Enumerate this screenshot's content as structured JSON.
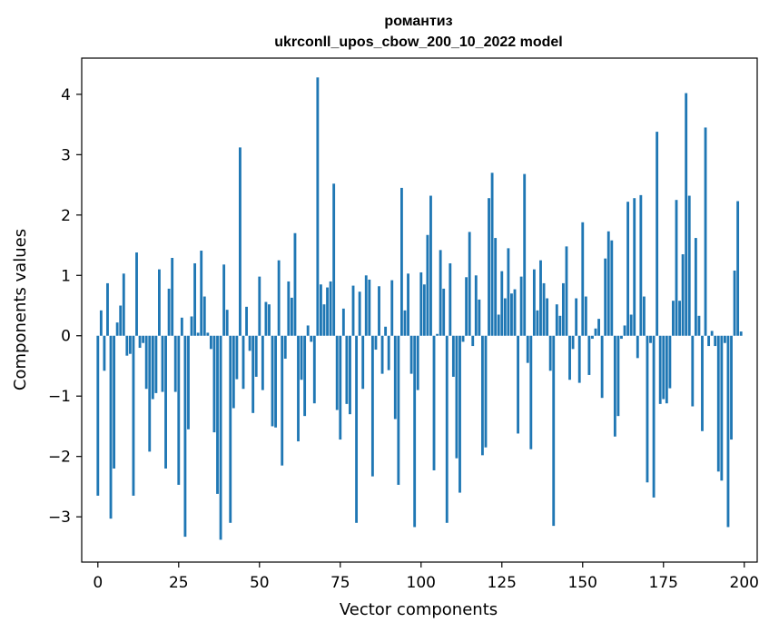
{
  "chart_data": {
    "type": "bar",
    "title": "романтиз",
    "subtitle": "ukrconll_upos_cbow_200_10_2022 model",
    "xlabel": "Vector components",
    "ylabel": "Components values",
    "xlim": [
      -5,
      204
    ],
    "ylim": [
      -3.75,
      4.6
    ],
    "xticks": [
      0,
      25,
      50,
      75,
      100,
      125,
      150,
      175,
      200
    ],
    "yticks": [
      -3,
      -2,
      -1,
      0,
      1,
      2,
      3,
      4
    ],
    "xtick_labels": [
      "0",
      "25",
      "50",
      "75",
      "100",
      "125",
      "150",
      "175",
      "200"
    ],
    "ytick_labels": [
      "−3",
      "−2",
      "−1",
      "0",
      "1",
      "2",
      "3",
      "4"
    ],
    "bar_color": "#1f77b4",
    "x": [
      0,
      1,
      2,
      3,
      4,
      5,
      6,
      7,
      8,
      9,
      10,
      11,
      12,
      13,
      14,
      15,
      16,
      17,
      18,
      19,
      20,
      21,
      22,
      23,
      24,
      25,
      26,
      27,
      28,
      29,
      30,
      31,
      32,
      33,
      34,
      35,
      36,
      37,
      38,
      39,
      40,
      41,
      42,
      43,
      44,
      45,
      46,
      47,
      48,
      49,
      50,
      51,
      52,
      53,
      54,
      55,
      56,
      57,
      58,
      59,
      60,
      61,
      62,
      63,
      64,
      65,
      66,
      67,
      68,
      69,
      70,
      71,
      72,
      73,
      74,
      75,
      76,
      77,
      78,
      79,
      80,
      81,
      82,
      83,
      84,
      85,
      86,
      87,
      88,
      89,
      90,
      91,
      92,
      93,
      94,
      95,
      96,
      97,
      98,
      99,
      100,
      101,
      102,
      103,
      104,
      105,
      106,
      107,
      108,
      109,
      110,
      111,
      112,
      113,
      114,
      115,
      116,
      117,
      118,
      119,
      120,
      121,
      122,
      123,
      124,
      125,
      126,
      127,
      128,
      129,
      130,
      131,
      132,
      133,
      134,
      135,
      136,
      137,
      138,
      139,
      140,
      141,
      142,
      143,
      144,
      145,
      146,
      147,
      148,
      149,
      150,
      151,
      152,
      153,
      154,
      155,
      156,
      157,
      158,
      159,
      160,
      161,
      162,
      163,
      164,
      165,
      166,
      167,
      168,
      169,
      170,
      171,
      172,
      173,
      174,
      175,
      176,
      177,
      178,
      179,
      180,
      181,
      182,
      183,
      184,
      185,
      186,
      187,
      188,
      189,
      190,
      191,
      192,
      193,
      194,
      195,
      196,
      197,
      198,
      199
    ],
    "values": [
      -2.65,
      0.42,
      -0.58,
      0.87,
      -3.03,
      -2.2,
      0.22,
      0.5,
      1.03,
      -0.33,
      -0.3,
      -2.65,
      1.38,
      -0.2,
      -0.12,
      -0.88,
      -1.92,
      -1.05,
      -0.95,
      1.1,
      -0.93,
      -2.2,
      0.78,
      1.29,
      -0.93,
      -2.47,
      0.3,
      -3.33,
      -1.55,
      0.32,
      1.2,
      0.05,
      1.41,
      0.65,
      0.05,
      -0.22,
      -1.6,
      -2.62,
      -3.38,
      1.18,
      0.43,
      -3.1,
      -1.2,
      -0.72,
      3.12,
      -0.88,
      0.48,
      -0.25,
      -1.28,
      -0.68,
      0.98,
      -0.9,
      0.56,
      0.52,
      -1.5,
      -1.52,
      1.25,
      -2.15,
      -0.38,
      0.9,
      0.63,
      1.7,
      -1.75,
      -0.73,
      -1.33,
      0.17,
      -0.1,
      -1.12,
      4.28,
      0.85,
      0.52,
      0.8,
      0.9,
      2.52,
      -1.23,
      -1.72,
      0.45,
      -1.13,
      -1.3,
      0.83,
      -3.1,
      0.73,
      -0.88,
      1.0,
      0.93,
      -2.33,
      -0.23,
      0.82,
      -0.63,
      0.15,
      -0.57,
      0.92,
      -1.38,
      -2.47,
      2.45,
      0.42,
      1.03,
      -0.63,
      -3.17,
      -0.9,
      1.05,
      0.85,
      1.67,
      2.32,
      -2.23,
      0.03,
      1.42,
      0.78,
      -3.1,
      1.2,
      -0.68,
      -2.03,
      -2.6,
      -0.1,
      0.97,
      1.72,
      -0.17,
      1.0,
      0.6,
      -1.98,
      -1.85,
      2.28,
      2.7,
      1.62,
      0.35,
      1.07,
      0.62,
      1.45,
      0.7,
      0.77,
      -1.62,
      0.98,
      2.68,
      -0.45,
      -1.88,
      1.1,
      0.42,
      1.25,
      0.87,
      0.62,
      -0.58,
      -3.15,
      0.52,
      0.33,
      0.87,
      1.48,
      -0.73,
      -0.22,
      0.62,
      -0.78,
      1.88,
      0.65,
      -0.65,
      -0.05,
      0.12,
      0.28,
      -1.03,
      1.28,
      1.73,
      1.58,
      -1.67,
      -1.33,
      -0.05,
      0.17,
      2.22,
      0.35,
      2.28,
      -0.37,
      2.33,
      0.65,
      -2.43,
      -0.12,
      -2.68,
      3.38,
      -1.13,
      -1.05,
      -1.12,
      -0.87,
      0.58,
      2.25,
      0.58,
      1.35,
      4.02,
      2.32,
      -1.17,
      1.62,
      0.33,
      -1.58,
      3.45,
      -0.17,
      0.08,
      -0.17,
      -2.25,
      -2.4,
      -0.12,
      -3.17,
      -1.72,
      1.08,
      2.23,
      0.07
    ]
  }
}
